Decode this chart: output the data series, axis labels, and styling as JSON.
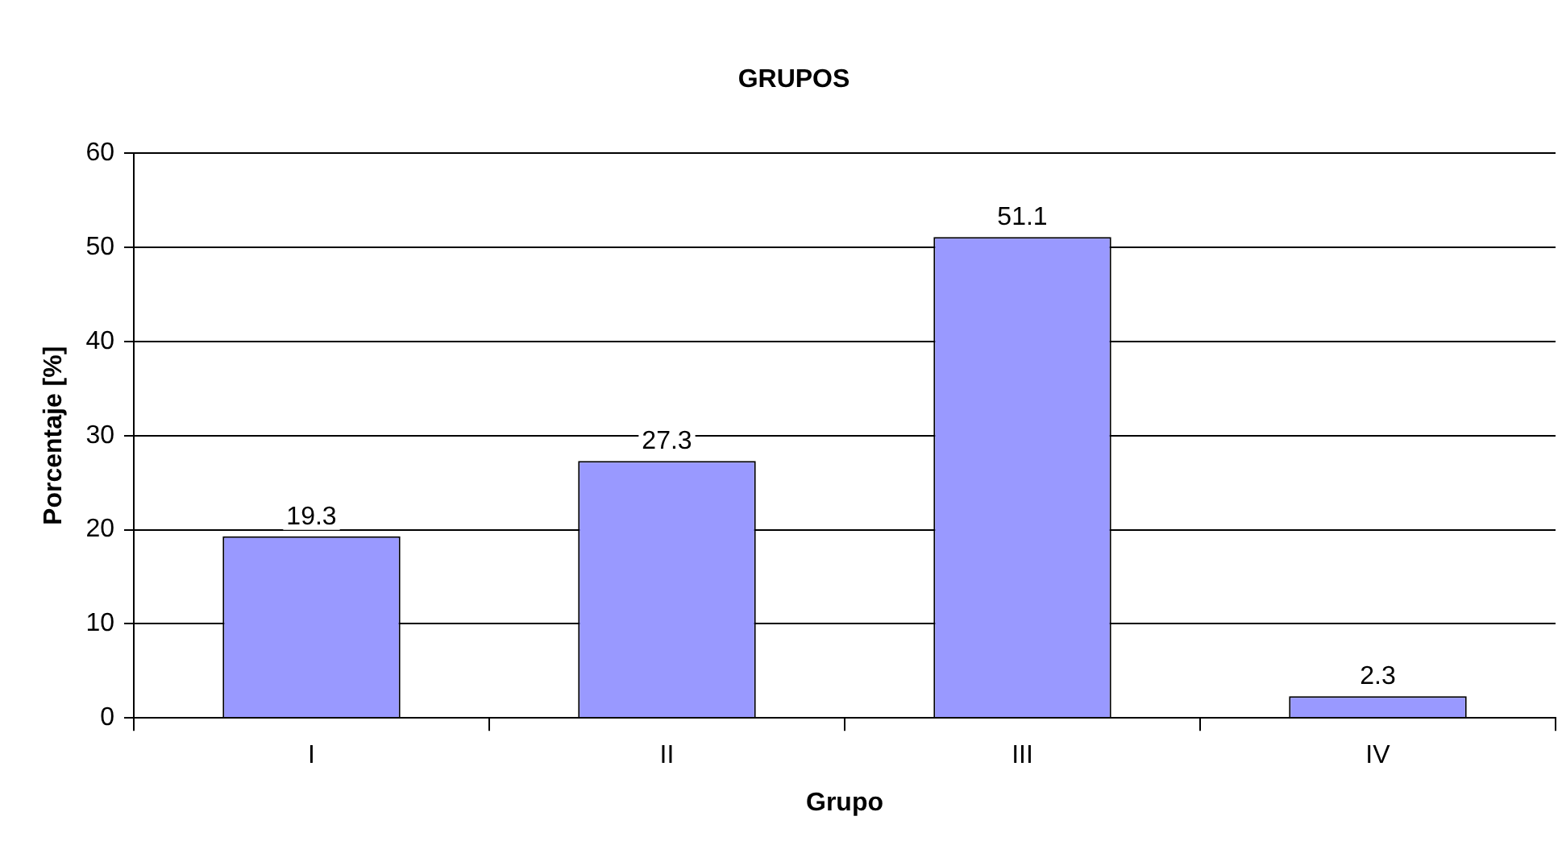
{
  "chart_data": {
    "type": "bar",
    "title": "GRUPOS",
    "xlabel": "Grupo",
    "ylabel": "Porcentaje [%]",
    "categories": [
      "I",
      "II",
      "III",
      "IV"
    ],
    "values": [
      19.3,
      27.3,
      51.1,
      2.3
    ],
    "color": "#9999ff",
    "ylim": [
      0,
      60
    ],
    "yticks": [
      0,
      10,
      20,
      30,
      40,
      50,
      60
    ],
    "grid": "y",
    "data_labels": true
  }
}
